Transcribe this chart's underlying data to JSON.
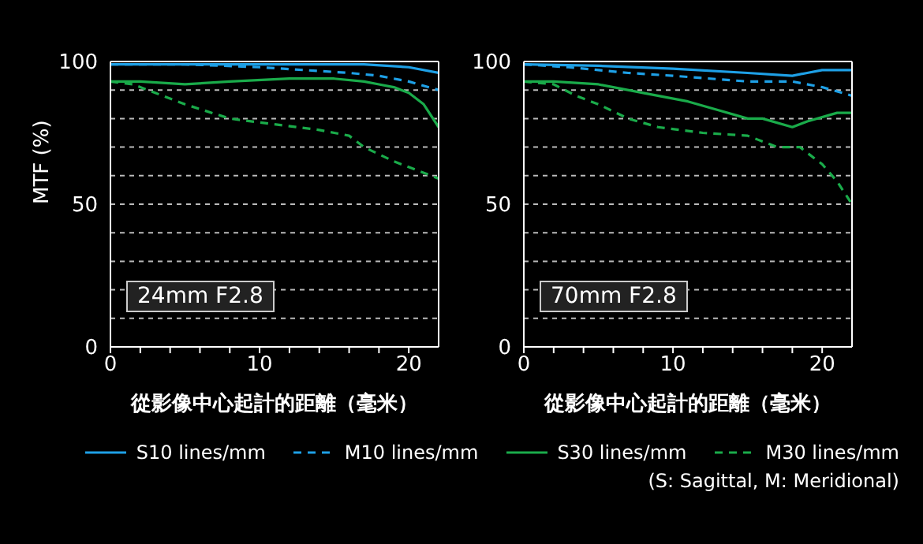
{
  "chart_data": [
    {
      "type": "line",
      "ylabel": "MTF (%)",
      "xlabel": "從影像中心起計的距離（毫米）",
      "xlim": [
        0,
        22
      ],
      "xticks": [
        0,
        {
          "value": 2,
          "label": null
        },
        {
          "value": 4,
          "label": null
        },
        {
          "value": 6,
          "label": null
        },
        {
          "value": 8,
          "label": null
        },
        10,
        {
          "value": 12,
          "label": null
        },
        {
          "value": 14,
          "label": null
        },
        {
          "value": 16,
          "label": null
        },
        {
          "value": 18,
          "label": null
        },
        20
      ],
      "ylim": [
        0,
        100
      ],
      "yticks": [
        0,
        {
          "value": 10,
          "label": null
        },
        {
          "value": 20,
          "label": null
        },
        {
          "value": 30,
          "label": null
        },
        {
          "value": 40,
          "label": null
        },
        50,
        {
          "value": 60,
          "label": null
        },
        {
          "value": 70,
          "label": null
        },
        {
          "value": 80,
          "label": null
        },
        {
          "value": 90,
          "label": null
        },
        100
      ],
      "grid": "y",
      "annotations": [
        "24mm F2.8"
      ],
      "legend": false,
      "series": [
        {
          "color": "#1ea0e6",
          "line_style": "solid",
          "x": [
            0,
            5,
            10,
            15,
            17,
            20,
            22
          ],
          "values": [
            99,
            99,
            99,
            99,
            99,
            98,
            96
          ]
        },
        {
          "color": "#1ea0e6",
          "line_style": "dashed",
          "x": [
            0,
            5,
            10,
            13,
            16,
            18,
            20,
            22
          ],
          "values": [
            99,
            99,
            98,
            97,
            96,
            95,
            93,
            90
          ]
        },
        {
          "color": "#1aab4a",
          "line_style": "solid",
          "x": [
            0,
            2,
            5,
            8,
            12,
            15,
            17,
            18,
            19,
            20,
            21,
            22
          ],
          "values": [
            93,
            93,
            92,
            93,
            94,
            94,
            93,
            92,
            91,
            89,
            85,
            77
          ]
        },
        {
          "color": "#1aab4a",
          "line_style": "dashed",
          "x": [
            0,
            1.5,
            3,
            5,
            8,
            11,
            14,
            15,
            16,
            17,
            19,
            22
          ],
          "values": [
            93,
            92,
            89,
            85,
            80,
            78,
            76,
            75,
            74,
            70,
            65,
            59
          ]
        }
      ]
    },
    {
      "type": "line",
      "xlabel": "從影像中心起計的距離（毫米）",
      "xlim": [
        0,
        22
      ],
      "xticks": [
        0,
        {
          "value": 2,
          "label": null
        },
        {
          "value": 4,
          "label": null
        },
        {
          "value": 6,
          "label": null
        },
        {
          "value": 8,
          "label": null
        },
        10,
        {
          "value": 12,
          "label": null
        },
        {
          "value": 14,
          "label": null
        },
        {
          "value": 16,
          "label": null
        },
        {
          "value": 18,
          "label": null
        },
        20
      ],
      "ylim": [
        0,
        100
      ],
      "yticks": [
        0,
        {
          "value": 10,
          "label": null
        },
        {
          "value": 20,
          "label": null
        },
        {
          "value": 30,
          "label": null
        },
        {
          "value": 40,
          "label": null
        },
        50,
        {
          "value": 60,
          "label": null
        },
        {
          "value": 70,
          "label": null
        },
        {
          "value": 80,
          "label": null
        },
        {
          "value": 90,
          "label": null
        },
        100
      ],
      "grid": "y",
      "annotations": [
        "70mm F2.8",
        "(S: Sagittal, M: Meridional)"
      ],
      "legend": "bottom",
      "series": [
        {
          "name": "S10 lines/mm",
          "color": "#1ea0e6",
          "line_style": "solid",
          "x": [
            0,
            5,
            10,
            15,
            18,
            19,
            20,
            22
          ],
          "values": [
            99,
            98.5,
            97.5,
            96,
            95,
            96,
            97,
            97
          ]
        },
        {
          "name": "M10 lines/mm",
          "color": "#1ea0e6",
          "line_style": "dashed",
          "x": [
            0,
            3,
            7,
            10,
            15,
            18,
            20,
            22
          ],
          "values": [
            99,
            98,
            96,
            95,
            93,
            93,
            91,
            88
          ]
        },
        {
          "name": "S30 lines/mm",
          "color": "#1aab4a",
          "line_style": "solid",
          "x": [
            0,
            2,
            5,
            8,
            11,
            13,
            15,
            16,
            18,
            19,
            21,
            22
          ],
          "values": [
            93,
            93,
            92,
            89,
            86,
            83,
            80,
            80,
            77,
            79,
            82,
            82
          ]
        },
        {
          "name": "M30 lines/mm",
          "color": "#1aab4a",
          "line_style": "dashed",
          "x": [
            0,
            2,
            3.5,
            5,
            7,
            9,
            12,
            15,
            17,
            18.5,
            20,
            21,
            22
          ],
          "values": [
            93,
            92,
            88,
            85,
            80,
            77,
            75,
            74,
            70,
            70,
            64,
            58,
            50
          ]
        }
      ]
    }
  ]
}
